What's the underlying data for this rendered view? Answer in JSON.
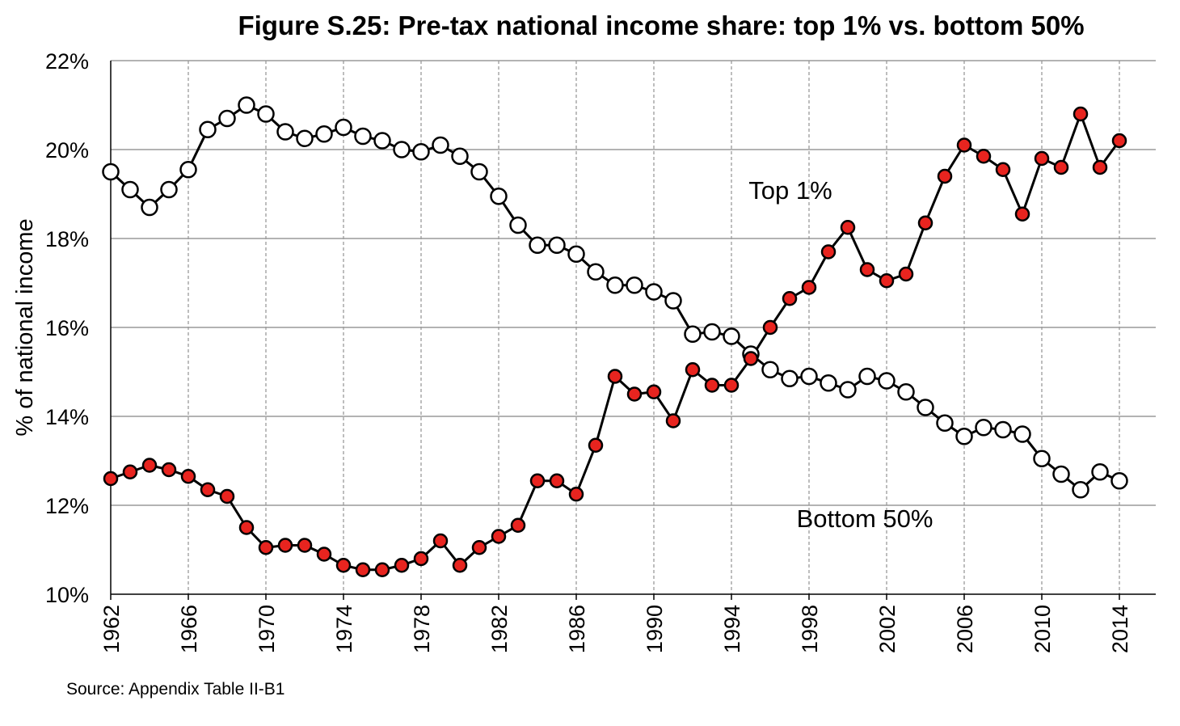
{
  "chart_data": {
    "type": "line",
    "title": "Figure S.25: Pre-tax national income share: top 1% vs. bottom 50%",
    "ylabel": "% of national income",
    "xlabel": "",
    "source": "Source: Appendix Table II-B1",
    "ylim": [
      10,
      22
    ],
    "xlim": [
      1962,
      2014
    ],
    "y_ticks": [
      "10%",
      "12%",
      "14%",
      "16%",
      "18%",
      "20%",
      "22%"
    ],
    "y_tick_values": [
      10,
      12,
      14,
      16,
      18,
      20,
      22
    ],
    "x_ticks": [
      "1962",
      "1966",
      "1970",
      "1974",
      "1978",
      "1982",
      "1986",
      "1990",
      "1994",
      "1998",
      "2002",
      "2006",
      "2010",
      "2014"
    ],
    "x_tick_values": [
      1962,
      1966,
      1970,
      1974,
      1978,
      1982,
      1986,
      1990,
      1994,
      1998,
      2002,
      2006,
      2010,
      2014
    ],
    "grid": true,
    "x": [
      1962,
      1963,
      1964,
      1965,
      1966,
      1967,
      1968,
      1969,
      1970,
      1971,
      1972,
      1973,
      1974,
      1975,
      1976,
      1977,
      1978,
      1979,
      1980,
      1981,
      1982,
      1983,
      1984,
      1985,
      1986,
      1987,
      1988,
      1989,
      1990,
      1991,
      1992,
      1993,
      1994,
      1995,
      1996,
      1997,
      1998,
      1999,
      2000,
      2001,
      2002,
      2003,
      2004,
      2005,
      2006,
      2007,
      2008,
      2009,
      2010,
      2011,
      2012,
      2013,
      2014
    ],
    "series": [
      {
        "name": "Bottom 50%",
        "marker_fill": "#ffffff",
        "values": [
          19.5,
          19.1,
          18.7,
          19.1,
          19.55,
          20.45,
          20.7,
          21.0,
          20.8,
          20.4,
          20.25,
          20.35,
          20.5,
          20.3,
          20.2,
          20.0,
          19.95,
          20.1,
          19.85,
          19.5,
          18.95,
          18.3,
          17.85,
          17.85,
          17.65,
          17.25,
          16.95,
          16.95,
          16.8,
          16.6,
          15.85,
          15.9,
          15.8,
          15.4,
          15.05,
          14.85,
          14.9,
          14.75,
          14.6,
          14.9,
          14.8,
          14.55,
          14.2,
          13.85,
          13.55,
          13.75,
          13.7,
          13.6,
          13.05,
          12.7,
          12.35,
          12.75,
          12.55
        ]
      },
      {
        "name": "Top 1%",
        "marker_fill": "#e8241f",
        "values": [
          12.6,
          12.75,
          12.9,
          12.8,
          12.65,
          12.35,
          12.2,
          11.5,
          11.05,
          11.1,
          11.1,
          10.9,
          10.65,
          10.55,
          10.55,
          10.65,
          10.8,
          11.2,
          10.65,
          11.05,
          11.3,
          11.55,
          12.55,
          12.55,
          12.25,
          13.35,
          14.9,
          14.5,
          14.55,
          13.9,
          15.05,
          14.7,
          14.7,
          15.3,
          16.0,
          16.65,
          16.9,
          17.7,
          18.25,
          17.3,
          17.05,
          17.2,
          18.35,
          19.4,
          20.1,
          19.85,
          19.55,
          18.55,
          19.8,
          19.6,
          20.8,
          19.6,
          20.2
        ]
      }
    ],
    "annotations": [
      {
        "text": "Top 1%",
        "series": "Top 1%"
      },
      {
        "text": "Bottom 50%",
        "series": "Bottom 50%"
      }
    ],
    "colors": {
      "line": "#000000",
      "grid": "#9a9a9a",
      "open_marker": "#ffffff",
      "filled_marker": "#e8241f"
    }
  }
}
